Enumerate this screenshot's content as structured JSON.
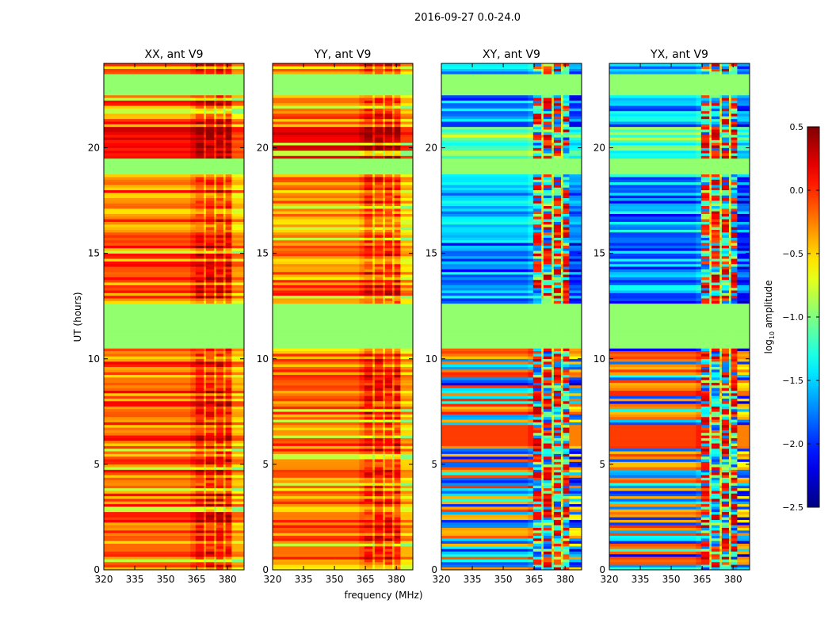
{
  "chart_data": {
    "type": "heatmap",
    "title": "2016-09-27 0.0-24.0",
    "xlabel": "frequency (MHz)",
    "ylabel": "UT (hours)",
    "xlim": [
      320,
      388
    ],
    "ylim": [
      0,
      24
    ],
    "xticks": [
      "320",
      "335",
      "350",
      "365",
      "380"
    ],
    "xtick_values": [
      320,
      335,
      350,
      365,
      380
    ],
    "yticks": [
      "0",
      "5",
      "10",
      "15",
      "20"
    ],
    "ytick_values": [
      0,
      5,
      10,
      15,
      20
    ],
    "colormap": "jet",
    "colorbar": {
      "label": "log10 amplitude",
      "label_main": "log",
      "label_sub": "10",
      "label_rest": " amplitude",
      "range": [
        -2.5,
        0.5
      ],
      "ticks": [
        "0.5",
        "0.0",
        "−0.5",
        "−1.0",
        "−1.5",
        "−2.0",
        "−2.5"
      ],
      "tick_values": [
        0.5,
        0.0,
        -0.5,
        -1.0,
        -1.5,
        -2.0,
        -2.5
      ]
    },
    "flagged_hours": [
      [
        22.5,
        23.5
      ],
      [
        18.7,
        19.5
      ],
      [
        10.4,
        12.6
      ]
    ],
    "flagged_value": -0.95,
    "panels": [
      {
        "title": "XX, ant V9",
        "kind": "parallel",
        "low_band_typical": -0.2,
        "high_band_typical": 0.25,
        "bright_hours": [
          19.5,
          21.0
        ],
        "bright_value": 0.15
      },
      {
        "title": "YY, ant V9",
        "kind": "parallel",
        "low_band_typical": -0.25,
        "high_band_typical": 0.1,
        "bright_hours": [
          19.5,
          21.0
        ],
        "bright_value": 0.2
      },
      {
        "title": "XY, ant V9",
        "kind": "cross",
        "low_band_typical": -1.7,
        "high_band_typical": -0.8,
        "bright_hours": [
          19.5,
          21.0
        ],
        "bright_value": -1.1
      },
      {
        "title": "YX, ant V9",
        "kind": "cross",
        "low_band_typical": -1.7,
        "high_band_typical": -0.8,
        "bright_hours": [
          19.5,
          21.0
        ],
        "bright_value": -1.1
      }
    ]
  }
}
